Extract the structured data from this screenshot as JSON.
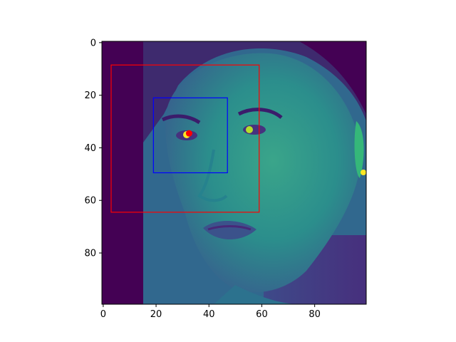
{
  "chart_data": {
    "type": "heatmap",
    "title": "",
    "xlabel": "",
    "ylabel": "",
    "image_extent": {
      "x": [
        -0.5,
        99.5
      ],
      "y": [
        99.5,
        -0.5
      ]
    },
    "y_inverted": true,
    "colormap": "viridis",
    "x_ticks": [
      0,
      20,
      40,
      60,
      80
    ],
    "y_ticks": [
      0,
      20,
      40,
      60,
      80
    ],
    "x_tick_labels": [
      "0",
      "20",
      "40",
      "60",
      "80"
    ],
    "y_tick_labels": [
      "0",
      "20",
      "40",
      "60",
      "80"
    ],
    "grid": false,
    "legend": "none",
    "rectangles": [
      {
        "name": "red-box",
        "color": "#ff0000",
        "x0": 3,
        "y0": 8.5,
        "x1": 59,
        "y1": 64.5
      },
      {
        "name": "blue-box",
        "color": "#0000ff",
        "x0": 19,
        "y0": 21,
        "x1": 47,
        "y1": 49.5
      }
    ],
    "points": [
      {
        "name": "marker",
        "color": "#ff0000",
        "x": 32.5,
        "y": 34.5
      }
    ],
    "image_content": "grayscale face portrait rendered with viridis colormap"
  }
}
